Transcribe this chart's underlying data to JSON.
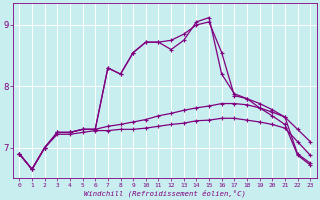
{
  "xlabel": "Windchill (Refroidissement éolien,°C)",
  "background_color": "#c8eef0",
  "line_color": "#800080",
  "grid_color": "#ffffff",
  "xlim": [
    -0.5,
    23.5
  ],
  "ylim": [
    6.5,
    9.35
  ],
  "xticks": [
    0,
    1,
    2,
    3,
    4,
    5,
    6,
    7,
    8,
    9,
    10,
    11,
    12,
    13,
    14,
    15,
    16,
    17,
    18,
    19,
    20,
    21,
    22,
    23
  ],
  "yticks": [
    7,
    8,
    9
  ],
  "line1_y": [
    6.9,
    6.65,
    7.0,
    7.25,
    7.25,
    7.3,
    7.3,
    8.3,
    8.2,
    8.55,
    8.72,
    8.72,
    8.75,
    8.85,
    9.0,
    9.05,
    8.55,
    7.85,
    7.8,
    7.72,
    7.62,
    7.5,
    6.9,
    6.75
  ],
  "line2_y": [
    6.9,
    6.65,
    7.0,
    7.25,
    7.25,
    7.3,
    7.3,
    8.3,
    8.2,
    8.55,
    8.72,
    8.72,
    8.6,
    8.75,
    9.05,
    9.12,
    8.2,
    7.88,
    7.8,
    7.65,
    7.52,
    7.38,
    6.88,
    6.72
  ],
  "line3_y": [
    6.9,
    6.65,
    7.0,
    7.25,
    7.25,
    7.3,
    7.3,
    7.35,
    7.38,
    7.42,
    7.46,
    7.52,
    7.56,
    7.61,
    7.65,
    7.68,
    7.72,
    7.72,
    7.7,
    7.65,
    7.58,
    7.5,
    7.3,
    7.1
  ],
  "line4_y": [
    6.9,
    6.65,
    7.0,
    7.22,
    7.22,
    7.25,
    7.28,
    7.28,
    7.3,
    7.3,
    7.32,
    7.35,
    7.38,
    7.4,
    7.44,
    7.45,
    7.48,
    7.48,
    7.45,
    7.42,
    7.38,
    7.32,
    7.1,
    6.88
  ],
  "markersize": 3.5,
  "linewidth": 0.9
}
